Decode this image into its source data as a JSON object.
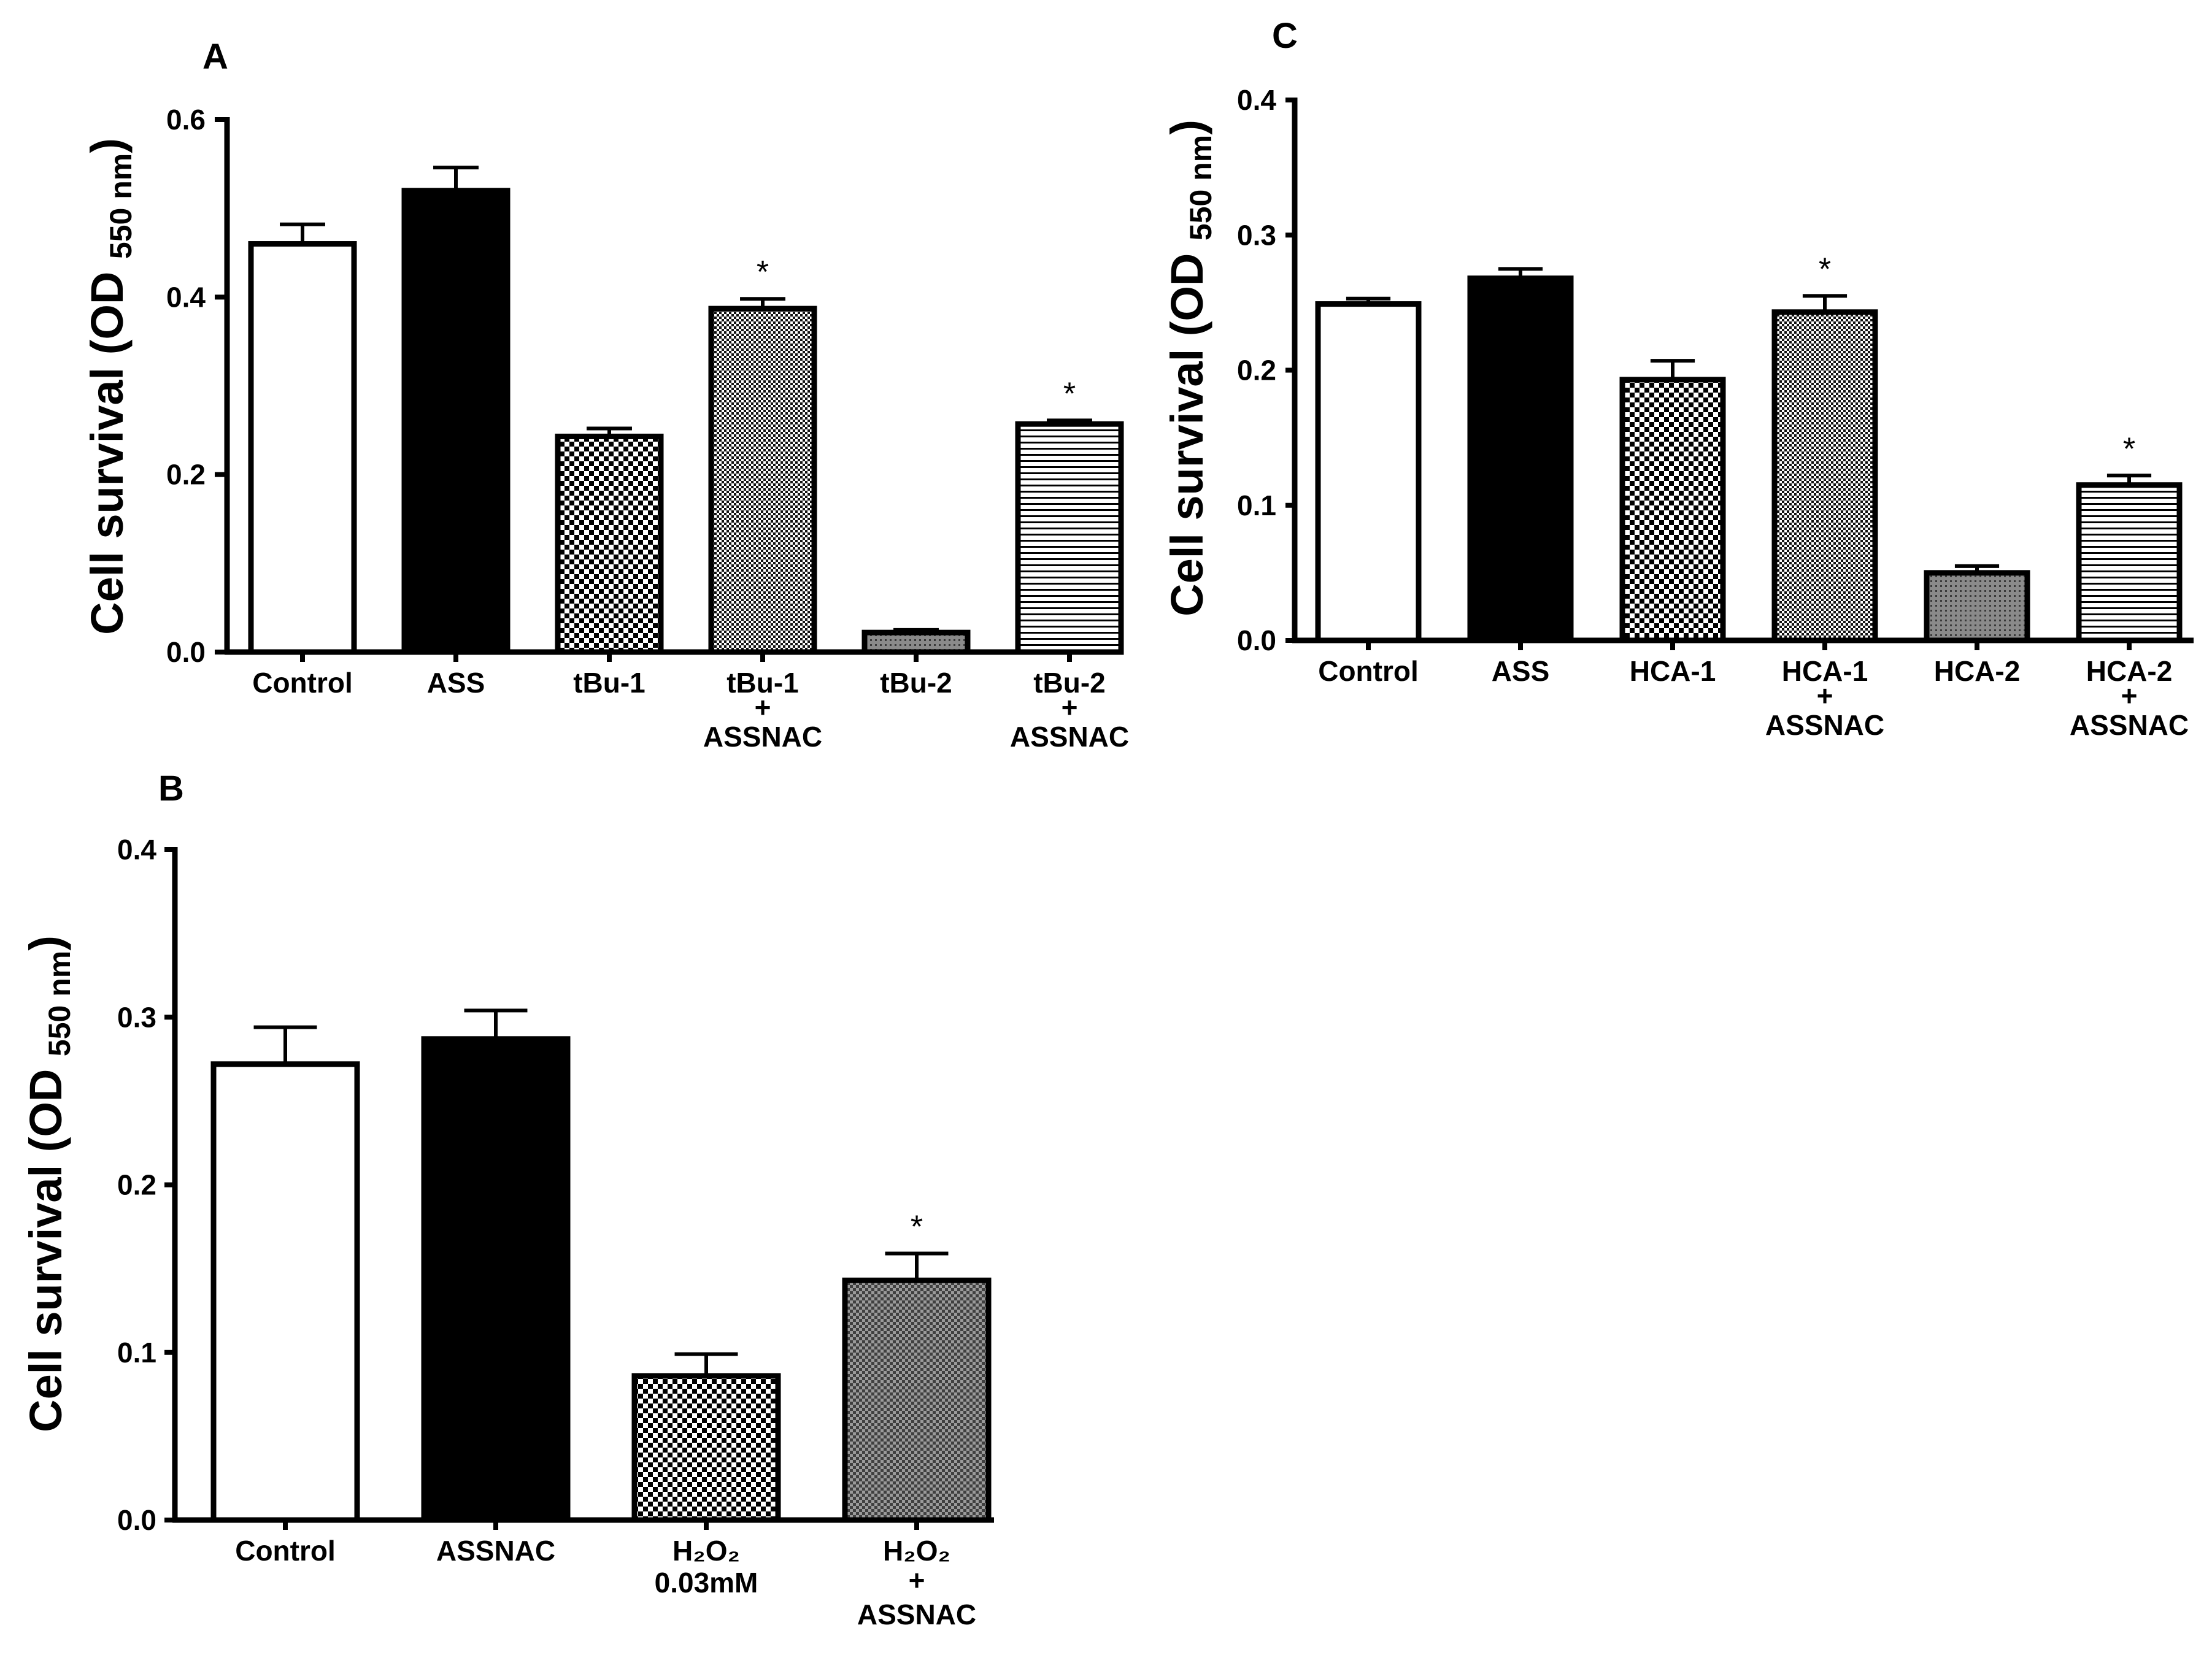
{
  "figure": {
    "colors": {
      "black": "#000000",
      "white": "#ffffff",
      "gray": "#7f7f7f"
    }
  },
  "chart_data": [
    {
      "panel": "A",
      "type": "bar",
      "ylabel": "Cell survival (OD",
      "ylabel_sub": "550 nm",
      "ylabel_close": ")",
      "ylim": [
        0,
        0.6
      ],
      "yticks": [
        0.0,
        0.2,
        0.4,
        0.6
      ],
      "ytick_labels": [
        "0.0",
        "0.2",
        "0.4",
        "0.6"
      ],
      "categories": [
        [
          "Control"
        ],
        [
          "ASS"
        ],
        [
          "tBu-1"
        ],
        [
          "tBu-1",
          "+",
          "ASSNAC"
        ],
        [
          "tBu-2"
        ],
        [
          "tBu-2",
          "+",
          "ASSNAC"
        ]
      ],
      "values": [
        0.46,
        0.52,
        0.243,
        0.387,
        0.022,
        0.257
      ],
      "errors": [
        0.022,
        0.026,
        0.009,
        0.011,
        0.003,
        0.004
      ],
      "fills": [
        "white",
        "black",
        "checker",
        "fine-check",
        "gray-dots",
        "hlines"
      ],
      "significant": [
        false,
        false,
        false,
        true,
        false,
        true
      ],
      "marker": "*"
    },
    {
      "panel": "B",
      "type": "bar",
      "ylabel": "Cell survival (OD",
      "ylabel_sub": "550 nm",
      "ylabel_close": ")",
      "ylim": [
        0,
        0.4
      ],
      "yticks": [
        0.0,
        0.1,
        0.2,
        0.3,
        0.4
      ],
      "ytick_labels": [
        "0.0",
        "0.1",
        "0.2",
        "0.3",
        "0.4"
      ],
      "categories": [
        [
          "Control"
        ],
        [
          "ASSNAC"
        ],
        [
          "H₂O₂",
          "0.03mM"
        ],
        [
          "H₂O₂",
          "+",
          "ASSNAC"
        ]
      ],
      "values": [
        0.272,
        0.287,
        0.086,
        0.143
      ],
      "errors": [
        0.022,
        0.017,
        0.013,
        0.016
      ],
      "fills": [
        "white",
        "black",
        "checker",
        "gray-check"
      ],
      "significant": [
        false,
        false,
        false,
        true
      ],
      "marker": "*"
    },
    {
      "panel": "C",
      "type": "bar",
      "ylabel": "Cell survival (OD",
      "ylabel_sub": "550 nm",
      "ylabel_close": ")",
      "ylim": [
        0,
        0.4
      ],
      "yticks": [
        0.0,
        0.1,
        0.2,
        0.3,
        0.4
      ],
      "ytick_labels": [
        "0.0",
        "0.1",
        "0.2",
        "0.3",
        "0.4"
      ],
      "categories": [
        [
          "Control"
        ],
        [
          "ASS"
        ],
        [
          "HCA-1"
        ],
        [
          "HCA-1",
          "+",
          "ASSNAC"
        ],
        [
          "HCA-2"
        ],
        [
          "HCA-2",
          "+",
          "ASSNAC"
        ]
      ],
      "values": [
        0.249,
        0.268,
        0.193,
        0.243,
        0.05,
        0.115
      ],
      "errors": [
        0.004,
        0.007,
        0.014,
        0.012,
        0.005,
        0.007
      ],
      "fills": [
        "white",
        "black",
        "checker",
        "fine-check",
        "gray-dots",
        "hlines"
      ],
      "significant": [
        false,
        false,
        false,
        true,
        false,
        true
      ],
      "marker": "*"
    }
  ]
}
